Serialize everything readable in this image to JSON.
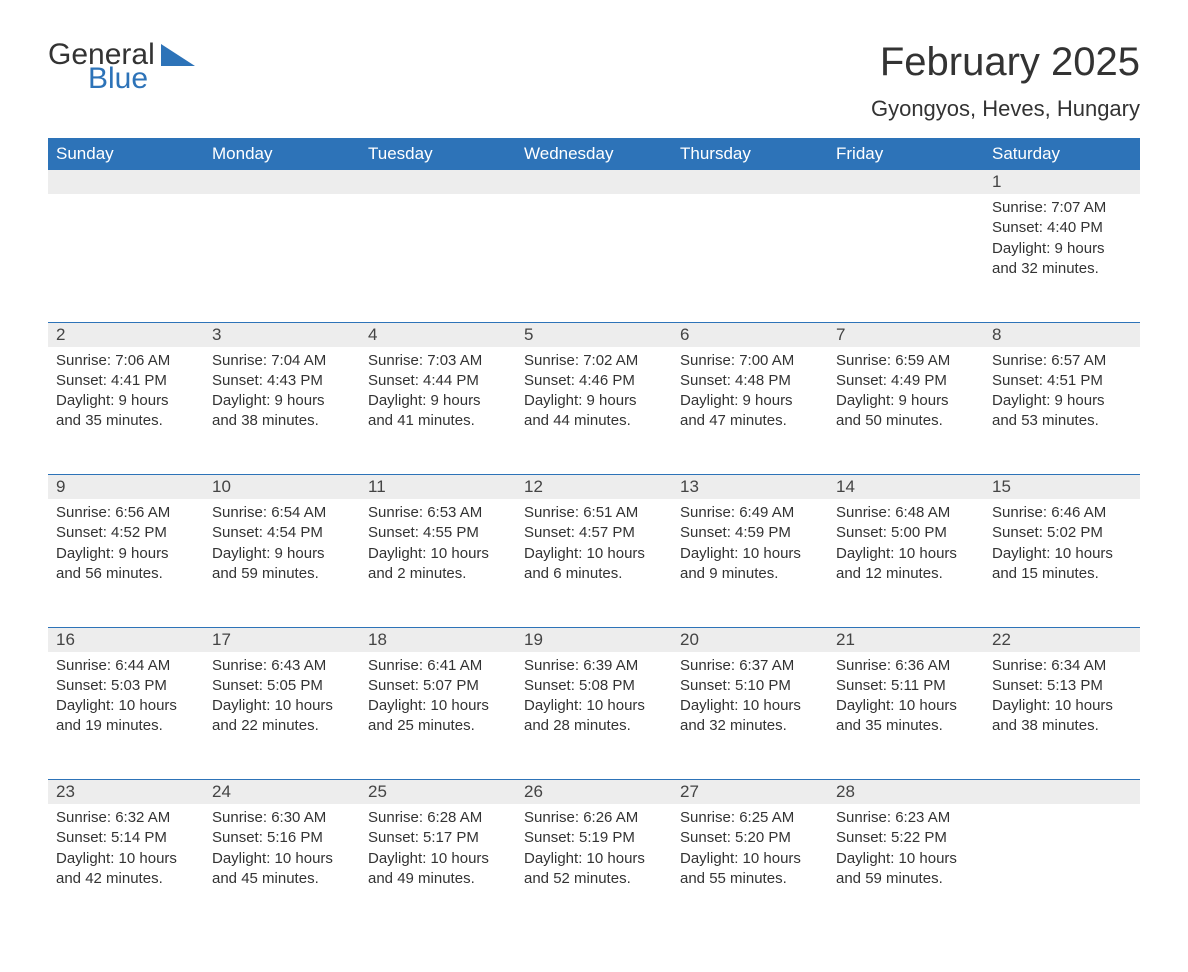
{
  "logo": {
    "word1": "General",
    "word2": "Blue",
    "word1_color": "#333333",
    "word2_color": "#2d73b8",
    "shape_color": "#2d73b8"
  },
  "title": "February 2025",
  "subtitle": "Gyongyos, Heves, Hungary",
  "colors": {
    "header_bg": "#2d73b8",
    "header_fg": "#ffffff",
    "daynum_bg": "#ededed",
    "text": "#333333",
    "rule": "#2d73b8",
    "page_bg": "#ffffff"
  },
  "fontsizes": {
    "title": 40,
    "subtitle": 22,
    "dayheader": 17,
    "daynum": 17,
    "body": 15,
    "logo": 30
  },
  "day_headers": [
    "Sunday",
    "Monday",
    "Tuesday",
    "Wednesday",
    "Thursday",
    "Friday",
    "Saturday"
  ],
  "weeks": [
    [
      null,
      null,
      null,
      null,
      null,
      null,
      {
        "n": "1",
        "sunrise": "Sunrise: 7:07 AM",
        "sunset": "Sunset: 4:40 PM",
        "daylight": "Daylight: 9 hours and 32 minutes."
      }
    ],
    [
      {
        "n": "2",
        "sunrise": "Sunrise: 7:06 AM",
        "sunset": "Sunset: 4:41 PM",
        "daylight": "Daylight: 9 hours and 35 minutes."
      },
      {
        "n": "3",
        "sunrise": "Sunrise: 7:04 AM",
        "sunset": "Sunset: 4:43 PM",
        "daylight": "Daylight: 9 hours and 38 minutes."
      },
      {
        "n": "4",
        "sunrise": "Sunrise: 7:03 AM",
        "sunset": "Sunset: 4:44 PM",
        "daylight": "Daylight: 9 hours and 41 minutes."
      },
      {
        "n": "5",
        "sunrise": "Sunrise: 7:02 AM",
        "sunset": "Sunset: 4:46 PM",
        "daylight": "Daylight: 9 hours and 44 minutes."
      },
      {
        "n": "6",
        "sunrise": "Sunrise: 7:00 AM",
        "sunset": "Sunset: 4:48 PM",
        "daylight": "Daylight: 9 hours and 47 minutes."
      },
      {
        "n": "7",
        "sunrise": "Sunrise: 6:59 AM",
        "sunset": "Sunset: 4:49 PM",
        "daylight": "Daylight: 9 hours and 50 minutes."
      },
      {
        "n": "8",
        "sunrise": "Sunrise: 6:57 AM",
        "sunset": "Sunset: 4:51 PM",
        "daylight": "Daylight: 9 hours and 53 minutes."
      }
    ],
    [
      {
        "n": "9",
        "sunrise": "Sunrise: 6:56 AM",
        "sunset": "Sunset: 4:52 PM",
        "daylight": "Daylight: 9 hours and 56 minutes."
      },
      {
        "n": "10",
        "sunrise": "Sunrise: 6:54 AM",
        "sunset": "Sunset: 4:54 PM",
        "daylight": "Daylight: 9 hours and 59 minutes."
      },
      {
        "n": "11",
        "sunrise": "Sunrise: 6:53 AM",
        "sunset": "Sunset: 4:55 PM",
        "daylight": "Daylight: 10 hours and 2 minutes."
      },
      {
        "n": "12",
        "sunrise": "Sunrise: 6:51 AM",
        "sunset": "Sunset: 4:57 PM",
        "daylight": "Daylight: 10 hours and 6 minutes."
      },
      {
        "n": "13",
        "sunrise": "Sunrise: 6:49 AM",
        "sunset": "Sunset: 4:59 PM",
        "daylight": "Daylight: 10 hours and 9 minutes."
      },
      {
        "n": "14",
        "sunrise": "Sunrise: 6:48 AM",
        "sunset": "Sunset: 5:00 PM",
        "daylight": "Daylight: 10 hours and 12 minutes."
      },
      {
        "n": "15",
        "sunrise": "Sunrise: 6:46 AM",
        "sunset": "Sunset: 5:02 PM",
        "daylight": "Daylight: 10 hours and 15 minutes."
      }
    ],
    [
      {
        "n": "16",
        "sunrise": "Sunrise: 6:44 AM",
        "sunset": "Sunset: 5:03 PM",
        "daylight": "Daylight: 10 hours and 19 minutes."
      },
      {
        "n": "17",
        "sunrise": "Sunrise: 6:43 AM",
        "sunset": "Sunset: 5:05 PM",
        "daylight": "Daylight: 10 hours and 22 minutes."
      },
      {
        "n": "18",
        "sunrise": "Sunrise: 6:41 AM",
        "sunset": "Sunset: 5:07 PM",
        "daylight": "Daylight: 10 hours and 25 minutes."
      },
      {
        "n": "19",
        "sunrise": "Sunrise: 6:39 AM",
        "sunset": "Sunset: 5:08 PM",
        "daylight": "Daylight: 10 hours and 28 minutes."
      },
      {
        "n": "20",
        "sunrise": "Sunrise: 6:37 AM",
        "sunset": "Sunset: 5:10 PM",
        "daylight": "Daylight: 10 hours and 32 minutes."
      },
      {
        "n": "21",
        "sunrise": "Sunrise: 6:36 AM",
        "sunset": "Sunset: 5:11 PM",
        "daylight": "Daylight: 10 hours and 35 minutes."
      },
      {
        "n": "22",
        "sunrise": "Sunrise: 6:34 AM",
        "sunset": "Sunset: 5:13 PM",
        "daylight": "Daylight: 10 hours and 38 minutes."
      }
    ],
    [
      {
        "n": "23",
        "sunrise": "Sunrise: 6:32 AM",
        "sunset": "Sunset: 5:14 PM",
        "daylight": "Daylight: 10 hours and 42 minutes."
      },
      {
        "n": "24",
        "sunrise": "Sunrise: 6:30 AM",
        "sunset": "Sunset: 5:16 PM",
        "daylight": "Daylight: 10 hours and 45 minutes."
      },
      {
        "n": "25",
        "sunrise": "Sunrise: 6:28 AM",
        "sunset": "Sunset: 5:17 PM",
        "daylight": "Daylight: 10 hours and 49 minutes."
      },
      {
        "n": "26",
        "sunrise": "Sunrise: 6:26 AM",
        "sunset": "Sunset: 5:19 PM",
        "daylight": "Daylight: 10 hours and 52 minutes."
      },
      {
        "n": "27",
        "sunrise": "Sunrise: 6:25 AM",
        "sunset": "Sunset: 5:20 PM",
        "daylight": "Daylight: 10 hours and 55 minutes."
      },
      {
        "n": "28",
        "sunrise": "Sunrise: 6:23 AM",
        "sunset": "Sunset: 5:22 PM",
        "daylight": "Daylight: 10 hours and 59 minutes."
      },
      null
    ]
  ]
}
